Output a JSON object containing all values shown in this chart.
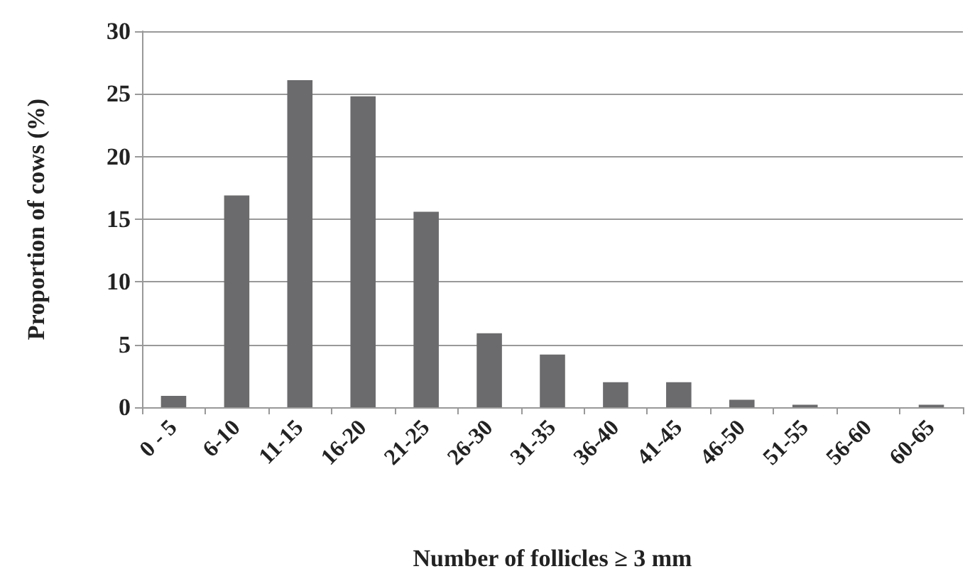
{
  "chart_data": {
    "type": "bar",
    "xlabel": "Number of follicles ≥ 3 mm",
    "ylabel": "Proportion of cows (%)",
    "categories": [
      "0 - 5",
      "6-10",
      "11-15",
      "16-20",
      "21-25",
      "26-30",
      "31-35",
      "36-40",
      "41-45",
      "46-50",
      "51-55",
      "56-60",
      "60-65"
    ],
    "values": [
      0.9,
      16.9,
      26.1,
      24.8,
      15.6,
      5.9,
      4.2,
      2.0,
      2.0,
      0.6,
      0.2,
      0,
      0.2
    ],
    "color": "#6b6b6d",
    "ylim": [
      0,
      30
    ],
    "yticks": [
      0,
      5,
      10,
      15,
      20,
      25,
      30
    ],
    "grid": "y"
  }
}
